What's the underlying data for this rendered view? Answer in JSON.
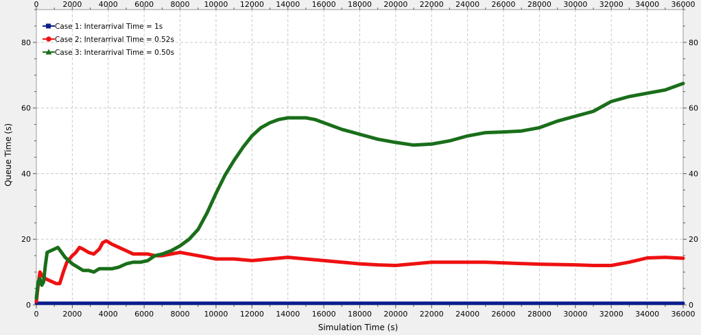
{
  "chart_data": {
    "type": "line",
    "title": "",
    "xlabel": "Simulation Time (s)",
    "ylabel": "Queue Time (s)",
    "xlim": [
      0,
      36000
    ],
    "ylim": [
      0,
      90
    ],
    "x_ticks": [
      0,
      2000,
      4000,
      6000,
      8000,
      10000,
      12000,
      14000,
      16000,
      18000,
      20000,
      22000,
      24000,
      26000,
      28000,
      30000,
      32000,
      34000,
      36000
    ],
    "x_tick_labels": [
      "0",
      "2000",
      "4000",
      "6000",
      "8000",
      "10000",
      "12000",
      "14000",
      "16000",
      "18000",
      "20000",
      "22000",
      "24000",
      "26000",
      "28000",
      "30000",
      "32000",
      "34000",
      "36000"
    ],
    "top_x_tick_labels": [
      "0",
      "2000",
      "4000",
      "6000",
      "8000",
      "10000",
      "12000",
      "14000",
      "16000",
      "18000",
      "20000",
      "22000",
      "24000",
      "26000",
      "28000",
      "30000",
      "32000",
      "34000",
      "36000"
    ],
    "y_ticks": [
      0,
      20,
      40,
      60,
      80
    ],
    "y_tick_labels": [
      "0",
      "20",
      "40",
      "60",
      "80"
    ],
    "right_y_tick_labels": [
      "0",
      "20",
      "40",
      "60",
      "80"
    ],
    "grid": true,
    "legend_position": "top-left",
    "series": [
      {
        "name": "Case 1:  Interarrival Time = 1s",
        "color": "#0a1e8c",
        "marker": "square",
        "x": [
          0,
          4000,
          8000,
          12000,
          16000,
          20000,
          24000,
          28000,
          32000,
          36000
        ],
        "y": [
          0.5,
          0.5,
          0.5,
          0.5,
          0.5,
          0.5,
          0.5,
          0.5,
          0.5,
          0.5
        ]
      },
      {
        "name": "Case 2:  Interarrival Time = 0.52s",
        "color": "#ee1111",
        "marker": "circle",
        "x": [
          0,
          100,
          200,
          300,
          400,
          500,
          700,
          900,
          1100,
          1300,
          1500,
          1700,
          2000,
          2200,
          2400,
          2600,
          2900,
          3200,
          3500,
          3700,
          3900,
          4200,
          4600,
          5000,
          5400,
          5800,
          6200,
          6600,
          7000,
          7500,
          8000,
          8500,
          9000,
          9500,
          10000,
          11000,
          12000,
          13000,
          14000,
          15000,
          16000,
          17000,
          18000,
          19000,
          20000,
          21000,
          22000,
          23000,
          24000,
          25000,
          26000,
          27000,
          28000,
          29000,
          30000,
          31000,
          32000,
          33000,
          34000,
          35000,
          36000
        ],
        "y": [
          1,
          6,
          10,
          9,
          8.5,
          8,
          7.5,
          7,
          6.5,
          6.5,
          10,
          13,
          15,
          16,
          17.5,
          17,
          16,
          15.5,
          17,
          19,
          19.5,
          18.5,
          17.5,
          16.5,
          15.5,
          15.5,
          15.5,
          15,
          15,
          15.5,
          16,
          15.5,
          15,
          14.5,
          14,
          14,
          13.5,
          14,
          14.5,
          14,
          13.5,
          13,
          12.5,
          12.2,
          12,
          12.5,
          13,
          13,
          13,
          13,
          12.8,
          12.6,
          12.4,
          12.3,
          12.2,
          12,
          12,
          13,
          14.3,
          14.5,
          14.2
        ]
      },
      {
        "name": "Case 3:  Interarrival Time = 0.50s",
        "color": "#1a6e1a",
        "marker": "triangle",
        "x": [
          0,
          100,
          200,
          300,
          400,
          500,
          600,
          800,
          1000,
          1200,
          1400,
          1600,
          1800,
          2000,
          2300,
          2600,
          2900,
          3200,
          3500,
          3800,
          4200,
          4600,
          5000,
          5400,
          5800,
          6200,
          6600,
          7000,
          7500,
          8000,
          8500,
          9000,
          9500,
          10000,
          10500,
          11000,
          11500,
          12000,
          12500,
          13000,
          13500,
          14000,
          14500,
          15000,
          15500,
          16000,
          17000,
          18000,
          19000,
          20000,
          21000,
          22000,
          23000,
          24000,
          25000,
          26000,
          27000,
          28000,
          29000,
          30000,
          31000,
          32000,
          33000,
          34000,
          35000,
          36000
        ],
        "y": [
          2,
          7,
          8,
          6,
          7,
          12,
          16,
          16.5,
          17,
          17.5,
          16,
          14.5,
          13.5,
          12.5,
          11.5,
          10.5,
          10.5,
          10,
          11,
          11,
          11,
          11.5,
          12.5,
          13,
          13,
          13.5,
          15,
          15.5,
          16.5,
          18,
          20,
          23,
          28,
          34,
          39.5,
          44,
          48,
          51.5,
          54,
          55.5,
          56.5,
          57,
          57,
          57,
          56.5,
          55.5,
          53.5,
          52,
          50.5,
          49.5,
          48.7,
          49,
          50,
          51.5,
          52.5,
          52.7,
          53,
          54,
          56,
          57.5,
          59,
          62,
          63.5,
          64.5,
          65.5,
          67.5
        ]
      }
    ]
  }
}
